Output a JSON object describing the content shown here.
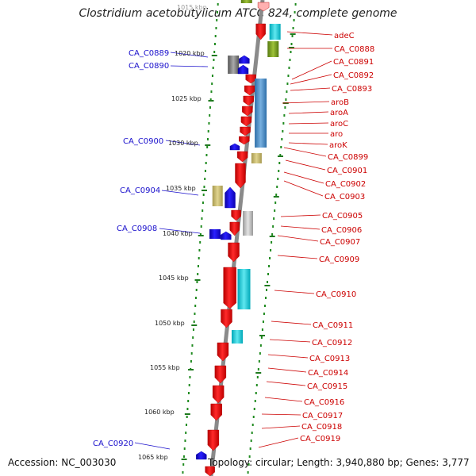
{
  "title": "Clostridium acetobutylicum ATCC 824, complete genome",
  "footer": {
    "accession": "Accession: NC_003030",
    "topology": "Topology: circular; Length: 3,940,880 bp; Genes: 3,777"
  },
  "colors": {
    "forward_gene": "#ef0000",
    "reverse_gene": "#1a10e6",
    "right_label": "#cc0000",
    "left_label": "#1a10cc",
    "backbone": "#808080",
    "dotted_track": "#1f8a1f"
  },
  "scale": {
    "start_kbp": 1015,
    "end_kbp": 1066,
    "tick_labels": [
      {
        "kbp": 1015,
        "label": "1015 kbp"
      },
      {
        "kbp": 1020,
        "label": "1020 kbp"
      },
      {
        "kbp": 1025,
        "label": "1025 kbp"
      },
      {
        "kbp": 1030,
        "label": "1030 kbp"
      },
      {
        "kbp": 1035,
        "label": "1035 kbp"
      },
      {
        "kbp": 1040,
        "label": "1040 kbp"
      },
      {
        "kbp": 1045,
        "label": "1045 kbp"
      },
      {
        "kbp": 1050,
        "label": "1050 kbp"
      },
      {
        "kbp": 1055,
        "label": "1055 kbp"
      },
      {
        "kbp": 1060,
        "label": "1060 kbp"
      },
      {
        "kbp": 1065,
        "label": "1065 kbp"
      }
    ]
  },
  "right_labels": [
    "adeC",
    "CA_C0888",
    "CA_C0891",
    "CA_C0892",
    "CA_C0893",
    "aroB",
    "aroA",
    "aroC",
    "aro",
    "aroK",
    "CA_C0899",
    "CA_C0901",
    "CA_C0902",
    "CA_C0903",
    "CA_C0905",
    "CA_C0906",
    "CA_C0907",
    "CA_C0909",
    "CA_C0910",
    "CA_C0911",
    "CA_C0912",
    "CA_C0913",
    "CA_C0914",
    "CA_C0915",
    "CA_C0916",
    "CA_C0917",
    "CA_C0918",
    "CA_C0919"
  ],
  "left_labels": [
    "CA_C0889",
    "CA_C0890",
    "CA_C0900",
    "CA_C0904",
    "CA_C0908",
    "CA_C0920"
  ]
}
